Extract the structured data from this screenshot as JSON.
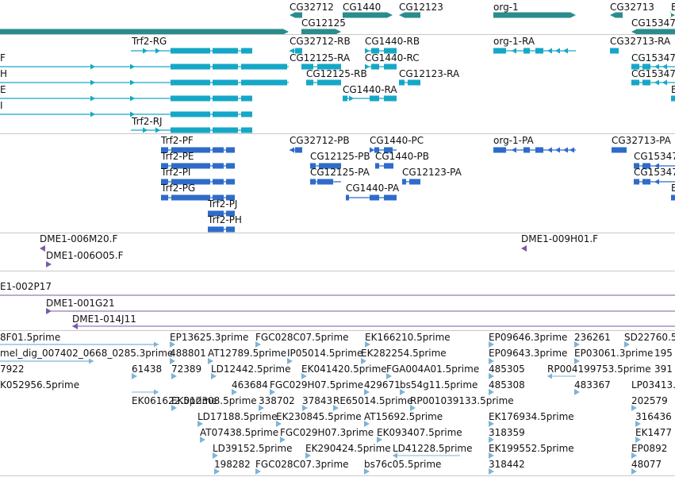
{
  "colors": {
    "genes": "#2a8c8c",
    "transcripts_rna": "#16a7c7",
    "proteins": "#2f6bc9",
    "clones": "#7a5aa6",
    "ests": "#7fb3d6",
    "separator": "#c9c9c9"
  },
  "tracks": {
    "genes": {
      "labels": [
        "CG32712",
        "CG1440",
        "CG12123",
        "org-1",
        "CG32713",
        "E",
        "CG12125",
        "CG15347"
      ]
    },
    "transcripts": {
      "labels": [
        "Trf2-RG",
        "CG32712-RB",
        "CG1440-RB",
        "org-1-RA",
        "CG32713-RA",
        "F",
        "CG12125-RA",
        "CG1440-RC",
        "CG15347",
        "H",
        "CG12125-RB",
        "CG12123-RA",
        "CG15347",
        "E",
        "CG1440-RA",
        "E",
        "I",
        "Trf2-RJ"
      ]
    },
    "proteins": {
      "labels": [
        "Trf2-PF",
        "CG32712-PB",
        "CG1440-PC",
        "org-1-PA",
        "CG32713-PA",
        "Trf2-PE",
        "CG12125-PB",
        "CG1440-PB",
        "CG15347",
        "Trf2-PI",
        "CG12125-PA",
        "CG12123-PA",
        "CG15347",
        "Trf2-PG",
        "CG1440-PA",
        "E",
        "Trf2-PJ",
        "Trf2-PH"
      ]
    },
    "clones_a": {
      "labels": [
        "DME1-006M20.F",
        "DME1-009H01.F",
        "DME1-006O05.F"
      ]
    },
    "clones_b": {
      "labels": [
        "E1-002P17",
        "DME1-001G21",
        "DME1-014J11"
      ]
    },
    "ests": {
      "labels": [
        "8F01.5prime",
        "EP13625.3prime",
        "FGC028C07.5prime",
        "EK166210.5prime",
        "EP09646.3prime",
        "236261",
        "SD22760.5",
        "mel_dig_007402_0668_0285.3prime",
        "488801",
        "AT12789.5prime",
        "IP05014.5prime",
        "EK282254.5prime",
        "EP09643.3prime",
        "EP03061.3prime",
        "195",
        "7922",
        "61438",
        "72389",
        "LD12442.5prime",
        "EK041420.5prime",
        "FGA004A01.5prime",
        "485305",
        "RP004199753.5prime",
        "391",
        "K052956.5prime",
        "463684",
        "FGC029H07.5prime",
        "429671",
        "bs54g11.5prime",
        "485308",
        "483367",
        "LP03413.",
        "EK061622.5prime",
        "EK012308.5prime",
        "338702",
        "37843",
        "RE65014.5prime",
        "RP001039133.5prime",
        "202579",
        "LD17188.5prime",
        "EK230845.5prime",
        "AT15692.5prime",
        "EK176934.5prime",
        "316436",
        "AT07438.5prime",
        "FGC029H07.3prime",
        "EK093407.5prime",
        "318359",
        "EK1477",
        "LD39152.5prime",
        "EK290424.5prime",
        "LD41228.5prime",
        "EK199552.5prime",
        "EP0892",
        "198282",
        "FGC028C07.3prime",
        "bs76c05.5prime",
        "318442",
        "48077"
      ]
    }
  }
}
